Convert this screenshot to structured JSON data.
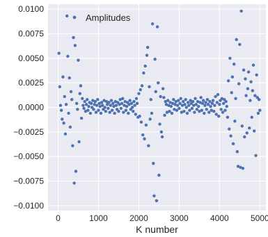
{
  "chart_data": {
    "type": "scatter",
    "title": "",
    "xlabel": "K number",
    "ylabel": "",
    "xlim": [
      -250,
      5150
    ],
    "ylim": [
      -0.0105,
      0.0105
    ],
    "x_ticks": [
      0,
      1000,
      2000,
      3000,
      4000,
      5000
    ],
    "x_tick_labels": [
      "0",
      "1000",
      "2000",
      "3000",
      "4000",
      "5000"
    ],
    "y_ticks": [
      0.01,
      0.0075,
      0.005,
      0.0025,
      0.0,
      -0.0025,
      -0.005,
      -0.0075,
      -0.01
    ],
    "y_tick_labels": [
      "0.0100",
      "0.0075",
      "0.0050",
      "0.0025",
      "0.0000",
      "−0.0025",
      "−0.0050",
      "−0.0075",
      "−0.0100"
    ],
    "grid": true,
    "background_color": "#eaeaf2",
    "grid_color": "#ffffff",
    "legend": {
      "location": "top-left",
      "entries": [
        "Amplitudes"
      ]
    },
    "series": [
      {
        "name": "Amplitudes",
        "color": "#4c72b0",
        "points": [
          [
            20,
            0.0055
          ],
          [
            40,
            0.0021
          ],
          [
            60,
            0.0002
          ],
          [
            80,
            -0.0003
          ],
          [
            100,
            -0.0012
          ],
          [
            120,
            0.0031
          ],
          [
            140,
            -0.0016
          ],
          [
            160,
            0.0011
          ],
          [
            180,
            -0.0027
          ],
          [
            200,
            0.0003
          ],
          [
            220,
            0.0093
          ],
          [
            240,
            0.0052
          ],
          [
            260,
            -0.0006
          ],
          [
            280,
            0.003
          ],
          [
            300,
            -0.002
          ],
          [
            320,
            0.0016
          ],
          [
            340,
            0.0008
          ],
          [
            360,
            -0.0039
          ],
          [
            380,
            0.0071
          ],
          [
            400,
            -0.0077
          ],
          [
            420,
            0.0063
          ],
          [
            440,
            -0.0065
          ],
          [
            460,
            0.0004
          ],
          [
            480,
            -0.0002
          ],
          [
            500,
            0.0048
          ],
          [
            520,
            -0.0035
          ],
          [
            540,
            0.0014
          ],
          [
            560,
            0.0022
          ],
          [
            580,
            -0.0011
          ],
          [
            600,
            0.0009
          ],
          [
            620,
            0.0002
          ],
          [
            640,
            -0.0001
          ],
          [
            660,
            0.0006
          ],
          [
            680,
            -0.0004
          ],
          [
            700,
            0.0003
          ],
          [
            720,
            0.0008
          ],
          [
            740,
            -0.0003
          ],
          [
            760,
            0.0001
          ],
          [
            780,
            0.0005
          ],
          [
            800,
            -0.0006
          ],
          [
            820,
            0.0004
          ],
          [
            840,
            0.0
          ],
          [
            860,
            0.0007
          ],
          [
            880,
            -0.0002
          ],
          [
            900,
            0.0003
          ],
          [
            920,
            0.0006
          ],
          [
            940,
            -0.0005
          ],
          [
            960,
            0.0002
          ],
          [
            980,
            0.0008
          ],
          [
            1000,
            -0.0003
          ],
          [
            1020,
            0.0004
          ],
          [
            1040,
            0.0001
          ],
          [
            1060,
            -0.0006
          ],
          [
            1080,
            0.0005
          ],
          [
            1100,
            0.0002
          ],
          [
            1120,
            -0.0002
          ],
          [
            1140,
            0.0007
          ],
          [
            1160,
            0.0
          ],
          [
            1180,
            -0.0004
          ],
          [
            1200,
            0.0006
          ],
          [
            1220,
            0.0003
          ],
          [
            1240,
            -0.0001
          ],
          [
            1260,
            0.0005
          ],
          [
            1280,
            -0.0005
          ],
          [
            1300,
            0.0002
          ],
          [
            1320,
            0.0007
          ],
          [
            1340,
            -0.0003
          ],
          [
            1360,
            0.0004
          ],
          [
            1380,
            0.0001
          ],
          [
            1400,
            -0.0006
          ],
          [
            1420,
            0.0006
          ],
          [
            1440,
            0.0002
          ],
          [
            1460,
            -0.0002
          ],
          [
            1480,
            0.0005
          ],
          [
            1500,
            -0.0004
          ],
          [
            1520,
            0.0003
          ],
          [
            1540,
            0.0008
          ],
          [
            1560,
            -0.0001
          ],
          [
            1580,
            0.0004
          ],
          [
            1600,
            0.0009
          ],
          [
            1620,
            -0.0005
          ],
          [
            1640,
            0.0002
          ],
          [
            1660,
            0.0006
          ],
          [
            1680,
            -0.0003
          ],
          [
            1700,
            0.0001
          ],
          [
            1720,
            0.0005
          ],
          [
            1740,
            -0.0006
          ],
          [
            1760,
            0.0003
          ],
          [
            1780,
            0.0007
          ],
          [
            1800,
            -0.0002
          ],
          [
            1820,
            0.0004
          ],
          [
            1840,
            0.0
          ],
          [
            1860,
            -0.0004
          ],
          [
            1880,
            0.0006
          ],
          [
            1900,
            0.0002
          ],
          [
            1920,
            -0.0007
          ],
          [
            1940,
            0.0009
          ],
          [
            1960,
            0.0004
          ],
          [
            1980,
            -0.001
          ],
          [
            2000,
            0.0014
          ],
          [
            2020,
            -0.0009
          ],
          [
            2040,
            0.0018
          ],
          [
            2060,
            -0.0015
          ],
          [
            2080,
            0.0022
          ],
          [
            2100,
            -0.0028
          ],
          [
            2120,
            0.0035
          ],
          [
            2140,
            -0.0032
          ],
          [
            2160,
            0.0042
          ],
          [
            2180,
            -0.0018
          ],
          [
            2200,
            0.0053
          ],
          [
            2220,
            0.0061
          ],
          [
            2240,
            -0.0039
          ],
          [
            2260,
            0.0021
          ],
          [
            2280,
            -0.0012
          ],
          [
            2300,
            0.0008
          ],
          [
            2320,
            -0.0006
          ],
          [
            2340,
            0.0085
          ],
          [
            2360,
            -0.0057
          ],
          [
            2380,
            -0.009
          ],
          [
            2400,
            0.0049
          ],
          [
            2420,
            0.0016
          ],
          [
            2440,
            -0.0095
          ],
          [
            2460,
            0.0082
          ],
          [
            2480,
            0.0025
          ],
          [
            2500,
            -0.0069
          ],
          [
            2520,
            -0.0017
          ],
          [
            2540,
            0.0011
          ],
          [
            2560,
            -0.0025
          ],
          [
            2580,
            -0.003
          ],
          [
            2600,
            0.0019
          ],
          [
            2620,
            0.001
          ],
          [
            2640,
            -0.0008
          ],
          [
            2660,
            0.0006
          ],
          [
            2680,
            0.0003
          ],
          [
            2700,
            -0.0005
          ],
          [
            2720,
            0.0007
          ],
          [
            2740,
            0.0002
          ],
          [
            2760,
            -0.0004
          ],
          [
            2780,
            0.0005
          ],
          [
            2800,
            0.0001
          ],
          [
            2820,
            -0.0006
          ],
          [
            2840,
            0.0004
          ],
          [
            2860,
            0.0008
          ],
          [
            2880,
            -0.0002
          ],
          [
            2900,
            0.0003
          ],
          [
            2920,
            0.0006
          ],
          [
            2940,
            -0.0003
          ],
          [
            2960,
            0.0002
          ],
          [
            2980,
            0.0007
          ],
          [
            3000,
            -0.0001
          ],
          [
            3020,
            0.0004
          ],
          [
            3040,
            0.0009
          ],
          [
            3060,
            -0.0005
          ],
          [
            3080,
            0.0002
          ],
          [
            3100,
            0.0006
          ],
          [
            3120,
            -0.0004
          ],
          [
            3140,
            0.0003
          ],
          [
            3160,
            0.0008
          ],
          [
            3180,
            0.0
          ],
          [
            3200,
            -0.0006
          ],
          [
            3220,
            0.0005
          ],
          [
            3240,
            0.0002
          ],
          [
            3260,
            -0.0003
          ],
          [
            3280,
            0.0007
          ],
          [
            3300,
            0.0004
          ],
          [
            3320,
            -0.0001
          ],
          [
            3340,
            0.0006
          ],
          [
            3360,
            0.0002
          ],
          [
            3380,
            -0.0005
          ],
          [
            3400,
            0.0009
          ],
          [
            3420,
            0.0003
          ],
          [
            3440,
            -0.0002
          ],
          [
            3460,
            0.0006
          ],
          [
            3480,
            0.0001
          ],
          [
            3500,
            -0.0004
          ],
          [
            3520,
            0.0005
          ],
          [
            3540,
            0.001
          ],
          [
            3560,
            -0.0003
          ],
          [
            3580,
            0.0004
          ],
          [
            3600,
            0.0007
          ],
          [
            3620,
            -0.0006
          ],
          [
            3640,
            0.0002
          ],
          [
            3660,
            0.0005
          ],
          [
            3680,
            -0.0002
          ],
          [
            3700,
            0.0008
          ],
          [
            3720,
            0.0003
          ],
          [
            3740,
            -0.0005
          ],
          [
            3760,
            0.0006
          ],
          [
            3780,
            0.0001
          ],
          [
            3800,
            -0.0003
          ],
          [
            3820,
            0.0004
          ],
          [
            3840,
            0.0007
          ],
          [
            3860,
            -0.0004
          ],
          [
            3880,
            0.0002
          ],
          [
            3900,
            0.0011
          ],
          [
            3920,
            -0.0007
          ],
          [
            3940,
            0.0005
          ],
          [
            3960,
            0.0013
          ],
          [
            3980,
            -0.0009
          ],
          [
            4000,
            0.0003
          ],
          [
            4020,
            0.0007
          ],
          [
            4040,
            -0.0002
          ],
          [
            4060,
            0.0009
          ],
          [
            4080,
            -0.0005
          ],
          [
            4100,
            0.0004
          ],
          [
            4120,
            0.0008
          ],
          [
            4140,
            -0.0003
          ],
          [
            4160,
            0.0006
          ],
          [
            4180,
            0.0001
          ],
          [
            4200,
            -0.001
          ],
          [
            4220,
            0.0027
          ],
          [
            4240,
            -0.0022
          ],
          [
            4260,
            0.005
          ],
          [
            4280,
            -0.0029
          ],
          [
            4300,
            0.0015
          ],
          [
            4320,
            0.0031
          ],
          [
            4340,
            -0.0037
          ],
          [
            4360,
            0.0044
          ],
          [
            4380,
            -0.0014
          ],
          [
            4400,
            0.0009
          ],
          [
            4420,
            0.0069
          ],
          [
            4440,
            -0.0045
          ],
          [
            4460,
            -0.006
          ],
          [
            4480,
            0.0024
          ],
          [
            4500,
            0.0064
          ],
          [
            4520,
            -0.0061
          ],
          [
            4540,
            0.0098
          ],
          [
            4560,
            -0.0019
          ],
          [
            4580,
            -0.0062
          ],
          [
            4600,
            0.0038
          ],
          [
            4620,
            -0.003
          ],
          [
            4640,
            0.0029
          ],
          [
            4660,
            0.0012
          ],
          [
            4680,
            -0.0026
          ],
          [
            4700,
            0.0019
          ],
          [
            4720,
            0.0036
          ],
          [
            4740,
            -0.0021
          ],
          [
            4760,
            0.0007
          ],
          [
            4780,
            0.0026
          ],
          [
            4800,
            -0.001
          ],
          [
            4820,
            0.0017
          ],
          [
            4840,
            0.0043
          ],
          [
            4860,
            -0.0024
          ],
          [
            4880,
            0.0012
          ],
          [
            4900,
            -0.0049
          ],
          [
            4920,
            0.0033
          ],
          [
            4940,
            0.001
          ],
          [
            4960,
            -0.0006
          ],
          [
            4980,
            0.0008
          ],
          [
            5000,
            -0.0003
          ]
        ]
      }
    ]
  }
}
